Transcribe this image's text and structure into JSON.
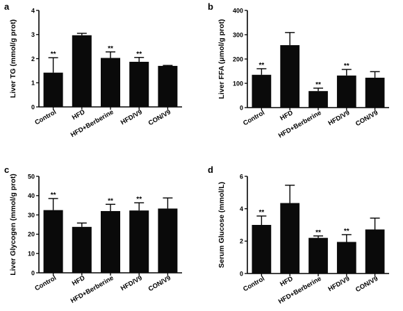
{
  "chart_data": [
    {
      "type": "bar",
      "panel": "a",
      "ylabel": "Liver TG (mmol/g prot)",
      "categories": [
        "Control",
        "HFD",
        "HFD+Berberine",
        "HFD/V9",
        "CON/V9"
      ],
      "values": [
        1.42,
        2.97,
        2.03,
        1.87,
        1.7
      ],
      "errors": [
        0.62,
        0.08,
        0.25,
        0.18,
        0.02
      ],
      "annotations": [
        "**",
        "",
        "**",
        "**",
        ""
      ],
      "ylim": [
        0,
        4
      ],
      "yticks": [
        0,
        1,
        2,
        3,
        4
      ]
    },
    {
      "type": "bar",
      "panel": "b",
      "ylabel": "Liver FFA (μmol/g prot)",
      "categories": [
        "Control",
        "HFD",
        "HFD+Berberine",
        "HFD/V9",
        "CON/V9"
      ],
      "values": [
        135,
        257,
        68,
        132,
        123
      ],
      "errors": [
        25,
        52,
        12,
        25,
        25
      ],
      "annotations": [
        "**",
        "",
        "**",
        "**",
        ""
      ],
      "ylim": [
        0,
        400
      ],
      "yticks": [
        0,
        100,
        200,
        300,
        400
      ]
    },
    {
      "type": "bar",
      "panel": "c",
      "ylabel": "Liver Glycogen (mmol/g prot)",
      "categories": [
        "Control",
        "HFD",
        "HFD+Berberine",
        "HFD/V9",
        "CON/V9"
      ],
      "values": [
        32.5,
        23.8,
        32.0,
        32.3,
        33.3
      ],
      "errors": [
        6,
        2,
        3.5,
        4,
        5.5
      ],
      "annotations": [
        "**",
        "",
        "**",
        "**",
        ""
      ],
      "ylim": [
        0,
        50
      ],
      "yticks": [
        0,
        10,
        20,
        30,
        40,
        50
      ]
    },
    {
      "type": "bar",
      "panel": "d",
      "ylabel": "Serum Glucose (mmol/L)",
      "categories": [
        "Control",
        "HFD",
        "HFD+Berberine",
        "HFD/V9",
        "CON/V9"
      ],
      "values": [
        3.0,
        4.35,
        2.2,
        1.95,
        2.72
      ],
      "errors": [
        0.55,
        1.1,
        0.12,
        0.45,
        0.7
      ],
      "annotations": [
        "**",
        "",
        "**",
        "**",
        ""
      ],
      "ylim": [
        0,
        6
      ],
      "yticks": [
        0,
        2,
        4,
        6
      ]
    }
  ]
}
